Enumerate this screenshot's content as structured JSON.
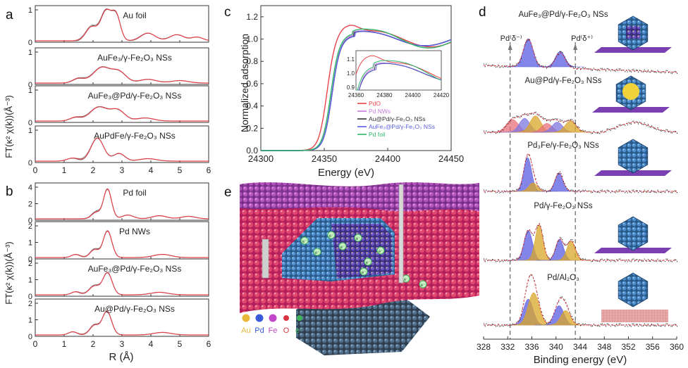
{
  "panel_letters": {
    "a": "a",
    "b": "b",
    "c": "c",
    "d": "d",
    "e": "e"
  },
  "panel_a": {
    "ylabel": "FT(κ² χ(k))(Å⁻³)",
    "xlabel": "",
    "xticks": [
      "0",
      "1",
      "2",
      "3",
      "4",
      "5",
      "6"
    ],
    "subplots": [
      {
        "label": "Au foil",
        "yticks": [
          "0",
          "1"
        ]
      },
      {
        "label": "AuFe₃/γ-Fe₂O₃ NSs",
        "yticks": [
          "0",
          "1"
        ]
      },
      {
        "label": "AuFe₃@Pd/γ-Fe₂O₃ NSs",
        "yticks": [
          "0",
          "1"
        ]
      },
      {
        "label": "AuPdFe/γ-Fe₂O₃ NSs",
        "yticks": [
          "0",
          "1"
        ]
      }
    ]
  },
  "panel_b": {
    "ylabel": "FT(κ² χ(k))(Å⁻³)",
    "xlabel": "R (Å)",
    "xticks": [
      "0",
      "1",
      "2",
      "3",
      "4",
      "5",
      "6"
    ],
    "subplots": [
      {
        "label": "Pd foil",
        "yticks": [
          "0",
          "2",
          "4"
        ]
      },
      {
        "label": "Pd NWs",
        "yticks": [
          "0",
          "1",
          "2"
        ]
      },
      {
        "label": "AuFe₃@Pd/γ-Fe₂O₃ NSs",
        "yticks": [
          "0",
          "1",
          "2"
        ]
      },
      {
        "label": "Au@Pd/γ-Fe₂O₃ NSs",
        "yticks": [
          "0",
          "1",
          "2"
        ]
      }
    ]
  },
  "panel_c": {
    "ylabel": "Normalized adsorption",
    "xlabel": "Energy (eV)",
    "xticks": [
      "24300",
      "24350",
      "24400",
      "24450"
    ],
    "yticks": [
      "0.0",
      "0.2",
      "0.4",
      "0.6",
      "0.8",
      "1.0",
      "1.2"
    ],
    "inset_xticks": [
      "24360",
      "24380",
      "24400",
      "24420"
    ],
    "inset_yticks": [
      "0.9",
      "1.0",
      "1.1"
    ],
    "legend": [
      {
        "name": "PdO",
        "color": "#e8434b"
      },
      {
        "name": "Pd NWs",
        "color": "#c77be0"
      },
      {
        "name": "Au@Pd/γ-Fe₂O₃ NSs",
        "color": "#333333"
      },
      {
        "name": "AuFe₃@Pd/γ-Fe₂O₃ NSs",
        "color": "#5a5ee0"
      },
      {
        "name": "Pd foil",
        "color": "#2fb56a"
      }
    ]
  },
  "panel_d": {
    "xlabel": "Binding energy (eV)",
    "xticks": [
      "328",
      "332",
      "336",
      "340",
      "344",
      "348",
      "352",
      "356",
      "360"
    ],
    "marker_left": "Pd⁽δ⁻⁾",
    "marker_right": "Pd⁽δ⁺⁾",
    "spectra": [
      {
        "label": "AuFe₃@Pd/γ-Fe₂O₃ NSs"
      },
      {
        "label": "Au@Pd/γ-Fe₂O₃ NSs"
      },
      {
        "label": "Pd₃Fe/γ-Fe₂O₃ NSs"
      },
      {
        "label": "Pd/γ-Fe₂O₃ NSs"
      },
      {
        "label": "Pd/Al₂O₃"
      }
    ]
  },
  "panel_e": {
    "legend": [
      "Au",
      "Pd",
      "Fe",
      "O",
      "e⁻"
    ],
    "legend_colors": [
      "#e8b83a",
      "#3b5bd9",
      "#c248c9",
      "#d9343f",
      "#3fb35a"
    ],
    "electron_label": "e⁻"
  },
  "colors": {
    "red": "#e0404a",
    "blue": "#5a5ee0",
    "gold": "#d9a528",
    "green": "#2fb56a",
    "grey": "#777777"
  }
}
